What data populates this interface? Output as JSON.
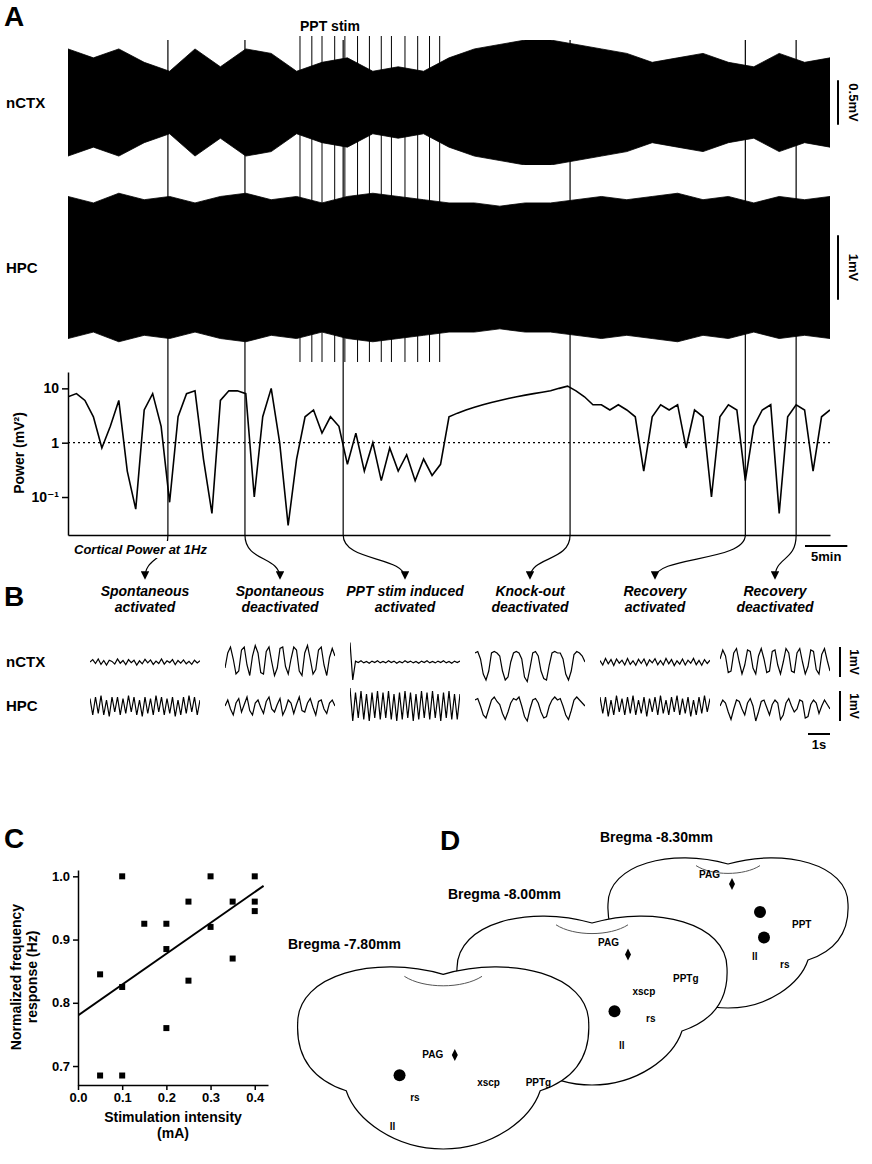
{
  "chart_data": [
    {
      "panel": "A",
      "type": "area",
      "color": "#000000",
      "x": [
        0,
        3,
        6,
        9,
        12,
        15,
        18,
        21,
        24,
        27,
        30,
        33,
        36,
        39,
        42,
        45,
        48,
        51,
        54,
        57,
        60,
        63,
        66,
        69,
        72,
        75,
        78,
        81,
        84,
        87,
        90
      ],
      "xlim": [
        0,
        90
      ],
      "series": [
        {
          "name": "nCTX",
          "ylim": [
            -0.7,
            0.7
          ],
          "scale_bar": {
            "value": 0.5,
            "label": "0.5mV"
          },
          "values": [
            0.6,
            0.5,
            0.6,
            0.45,
            0.35,
            0.6,
            0.4,
            0.6,
            0.55,
            0.35,
            0.45,
            0.5,
            0.35,
            0.4,
            0.35,
            0.5,
            0.6,
            0.65,
            0.7,
            0.7,
            0.65,
            0.6,
            0.55,
            0.45,
            0.5,
            0.55,
            0.45,
            0.4,
            0.55,
            0.45,
            0.5
          ]
        },
        {
          "name": "HPC",
          "ylim": [
            -1.2,
            1.2
          ],
          "scale_bar": {
            "value": 1,
            "label": "1mV"
          },
          "values": [
            1.1,
            1.0,
            1.15,
            1.05,
            1.1,
            1.0,
            1.1,
            1.15,
            1.05,
            1.1,
            1.0,
            1.1,
            1.15,
            1.1,
            1.05,
            1.0,
            1.0,
            0.95,
            1.0,
            1.0,
            1.05,
            1.1,
            1.05,
            1.1,
            1.15,
            1.05,
            1.1,
            1.0,
            1.1,
            1.05,
            1.1
          ]
        }
      ],
      "stim_label": "PPT stim",
      "stim_times": [
        27.4,
        28.8,
        30,
        31.5,
        32.7,
        34.2,
        35.6,
        37,
        38.2,
        39.8,
        41.3,
        42.7,
        43.9
      ]
    },
    {
      "type": "line",
      "log": "y",
      "color": "#000000",
      "tick_labels": "y",
      "x": [
        0,
        1,
        2,
        3,
        4,
        5,
        6,
        7,
        8,
        9,
        10,
        11,
        12,
        13,
        14,
        15,
        16,
        17,
        18,
        19,
        20,
        21,
        22,
        23,
        24,
        25,
        26,
        27,
        28,
        29,
        30,
        31,
        32,
        33,
        34,
        35,
        36,
        37,
        38,
        39,
        40,
        41,
        42,
        43,
        44,
        45,
        46,
        47,
        48,
        49,
        50,
        51,
        52,
        53,
        54,
        55,
        56,
        57,
        58,
        59,
        60,
        61,
        62,
        63,
        64,
        65,
        66,
        67,
        68,
        69,
        70,
        71,
        72,
        73,
        74,
        75,
        76,
        77,
        78,
        79,
        80,
        81,
        82,
        83,
        84,
        85,
        86,
        87,
        88,
        89,
        90
      ],
      "values": [
        7,
        8,
        6,
        3,
        0.8,
        2,
        6,
        0.3,
        0.06,
        4,
        8,
        2,
        0.08,
        3,
        8,
        9,
        0.5,
        0.05,
        6,
        9,
        9,
        8,
        0.1,
        3,
        10,
        1,
        0.03,
        0.5,
        3,
        4,
        1.5,
        3,
        2,
        0.4,
        1.5,
        0.3,
        1,
        0.2,
        0.8,
        0.3,
        0.6,
        0.2,
        0.5,
        0.25,
        0.4,
        3,
        3.5,
        4,
        4.5,
        5,
        5.5,
        6,
        6.5,
        7,
        7.5,
        8,
        8.5,
        9,
        10,
        11,
        9,
        7,
        5,
        5,
        4,
        5,
        4,
        3,
        0.3,
        3,
        5,
        4,
        5,
        0.8,
        4,
        3,
        0.1,
        3,
        5,
        4,
        0.2,
        2,
        4,
        5,
        0.05,
        3,
        5,
        4,
        0.3,
        3,
        4
      ],
      "xlim": [
        0,
        90
      ],
      "xticks": [],
      "ylim": [
        0.02,
        20
      ],
      "yticks": [
        10,
        1,
        {
          "value": 0.1,
          "label": "10⁻¹"
        }
      ],
      "y_label": "Power (mV²)",
      "annotation": "Cortical Power at 1Hz",
      "reference_line": 1,
      "scale_bar": {
        "value": 5,
        "label": "5min"
      },
      "events": [
        11.8,
        20.9,
        32.5,
        59.3,
        80,
        86
      ]
    },
    {
      "panel": "B",
      "type": "line",
      "color": "#000000",
      "x": [
        0,
        0.125,
        0.25,
        0.375,
        0.5,
        0.625,
        0.75,
        0.875,
        1,
        1.125,
        1.25,
        1.375,
        1.5,
        1.625,
        1.75,
        1.875,
        2,
        2.125,
        2.25,
        2.375,
        2.5,
        2.625,
        2.75,
        2.875,
        3,
        3.125,
        3.25,
        3.375,
        3.5,
        3.625,
        3.75,
        3.875,
        4,
        4.125,
        4.25,
        4.375,
        4.5,
        4.625,
        4.75,
        4.875,
        5
      ],
      "xlim": [
        0,
        5
      ],
      "ylim": [
        -0.7,
        0.7
      ],
      "rows": [
        "nCTX",
        "HPC"
      ],
      "columns": [
        {
          "label": "Spontaneous activated",
          "values": [
            [
              0,
              0.08,
              -0.05,
              0.1,
              -0.08,
              0.05,
              -0.1,
              0.06,
              0.02,
              -0.07,
              0.1,
              -0.04,
              0.05,
              -0.09,
              0.08,
              -0.02,
              0.06,
              -0.1,
              0.04,
              -0.06,
              0.09,
              -0.03,
              0.07,
              -0.08,
              0.03,
              -0.05,
              0.1,
              -0.07,
              0.04,
              -0.02,
              0.08,
              -0.09,
              0.05,
              -0.04,
              0.07,
              -0.06,
              0.02,
              -0.08,
              0.06,
              -0.03,
              0.04
            ],
            [
              0.25,
              -0.3,
              0.3,
              -0.25,
              0.35,
              -0.3,
              0.2,
              -0.35,
              0.3,
              -0.2,
              0.3,
              -0.3,
              0.25,
              -0.25,
              0.35,
              -0.2,
              0.3,
              -0.3,
              0.2,
              -0.35,
              0.3,
              -0.25,
              0.25,
              -0.3,
              0.35,
              -0.2,
              0.3,
              -0.3,
              0.25,
              -0.25,
              0.3,
              -0.35,
              0.2,
              -0.3,
              0.3,
              -0.25,
              0.35,
              -0.2,
              0.3,
              -0.3,
              0.2
            ]
          ]
        },
        {
          "label": "Spontaneous deactivated",
          "values": [
            [
              -0.2,
              0.3,
              0.5,
              0.1,
              -0.4,
              -0.3,
              0.4,
              0.5,
              -0.1,
              -0.45,
              0.2,
              0.55,
              0.3,
              -0.35,
              -0.4,
              0.35,
              0.5,
              0,
              -0.45,
              -0.2,
              0.45,
              0.5,
              -0.15,
              -0.4,
              0.1,
              0.5,
              0.4,
              -0.3,
              -0.45,
              0.3,
              0.55,
              0.1,
              -0.4,
              -0.25,
              0.4,
              0.5,
              -0.1,
              -0.45,
              0.15,
              0.45,
              0.2
            ],
            [
              0,
              0.2,
              -0.1,
              -0.3,
              0.1,
              0.25,
              -0.2,
              0.05,
              0.3,
              -0.15,
              -0.3,
              0.1,
              0.2,
              -0.05,
              -0.25,
              0.15,
              0.3,
              -0.1,
              -0.2,
              0.05,
              0.25,
              -0.3,
              -0.1,
              0.2,
              0.1,
              -0.25,
              0.05,
              0.3,
              -0.15,
              -0.2,
              0.1,
              0.25,
              -0.05,
              -0.3,
              0.15,
              0.2,
              -0.1,
              -0.25,
              0.1,
              0.2,
              0
            ]
          ]
        },
        {
          "label": "PPT stim induced activated",
          "values": [
            [
              0.65,
              -0.6,
              0.03,
              -0.02,
              0.04,
              -0.03,
              0.02,
              -0.04,
              0.03,
              -0.02,
              0.04,
              -0.03,
              0.02,
              -0.03,
              0.04,
              -0.02,
              0.03,
              -0.04,
              0.02,
              -0.03,
              0.04,
              -0.02,
              0.03,
              -0.03,
              0.02,
              -0.04,
              0.03,
              -0.02,
              0.04,
              -0.03,
              0.02,
              -0.03,
              0.03,
              -0.02,
              0.04,
              -0.03,
              0.02,
              -0.04,
              0.03,
              -0.02,
              0.03
            ],
            [
              0.6,
              -0.5,
              0.45,
              -0.4,
              0.5,
              -0.45,
              0.4,
              -0.5,
              0.45,
              -0.4,
              0.5,
              -0.45,
              0.45,
              -0.4,
              0.5,
              -0.45,
              0.4,
              -0.5,
              0.45,
              -0.45,
              0.5,
              -0.4,
              0.45,
              -0.5,
              0.4,
              -0.45,
              0.5,
              -0.4,
              0.45,
              -0.45,
              0.5,
              -0.4,
              0.4,
              -0.5,
              0.45,
              -0.4,
              0.5,
              -0.45,
              0.4,
              -0.45,
              0.4
            ]
          ]
        },
        {
          "label": "Knock-out deactivated",
          "values": [
            [
              0.3,
              0.35,
              0.1,
              -0.4,
              -0.6,
              -0.3,
              0.3,
              0.35,
              0.3,
              0.2,
              -0.3,
              -0.6,
              -0.5,
              0,
              0.3,
              0.35,
              0.3,
              0.1,
              -0.5,
              -0.65,
              -0.2,
              0.3,
              0.35,
              0.2,
              -0.3,
              -0.55,
              -0.6,
              -0.1,
              0.3,
              0.35,
              0.3,
              0.3,
              0.1,
              -0.4,
              -0.6,
              -0.3,
              0.25,
              0.35,
              0.3,
              0.2,
              0
            ],
            [
              0.2,
              0.25,
              0,
              -0.3,
              -0.4,
              -0.1,
              0.2,
              0.3,
              0.15,
              0.05,
              -0.25,
              -0.45,
              -0.2,
              0.1,
              0.25,
              0.2,
              0.3,
              0,
              -0.35,
              -0.5,
              -0.1,
              0.2,
              0.25,
              0.1,
              -0.2,
              -0.4,
              -0.35,
              0,
              0.2,
              0.3,
              0.2,
              0.25,
              0,
              -0.3,
              -0.45,
              -0.15,
              0.2,
              0.3,
              0.2,
              0.1,
              0
            ]
          ]
        },
        {
          "label": "Recovery activated",
          "values": [
            [
              0.05,
              -0.1,
              0.12,
              -0.06,
              0.08,
              -0.12,
              0.1,
              -0.04,
              0.06,
              -0.1,
              0.12,
              -0.08,
              0.04,
              -0.11,
              0.09,
              -0.05,
              0.1,
              -0.12,
              0.07,
              -0.03,
              0.11,
              -0.09,
              0.05,
              -0.1,
              0.12,
              -0.06,
              0.08,
              -0.12,
              0.04,
              -0.07,
              0.1,
              -0.1,
              0.06,
              -0.04,
              0.12,
              -0.09,
              0.05,
              -0.11,
              0.08,
              -0.05,
              0.06
            ],
            [
              0.3,
              -0.25,
              0.3,
              -0.35,
              0.2,
              -0.3,
              0.35,
              -0.2,
              0.25,
              -0.3,
              0.3,
              -0.25,
              0.35,
              -0.3,
              0.2,
              -0.25,
              0.3,
              -0.35,
              0.25,
              -0.2,
              0.3,
              -0.3,
              0.35,
              -0.25,
              0.2,
              -0.3,
              0.3,
              -0.2,
              0.35,
              -0.3,
              0.25,
              -0.25,
              0.3,
              -0.35,
              0.2,
              -0.3,
              0.3,
              -0.25,
              0.35,
              -0.2,
              0.25
            ]
          ]
        },
        {
          "label": "Recovery deactivated",
          "values": [
            [
              0.1,
              0.4,
              0.2,
              -0.35,
              -0.3,
              0.3,
              0.45,
              0,
              -0.4,
              -0.1,
              0.4,
              0.35,
              -0.2,
              -0.4,
              0.2,
              0.45,
              0.1,
              -0.35,
              -0.3,
              0.35,
              0.4,
              -0.1,
              -0.4,
              0,
              0.45,
              0.3,
              -0.3,
              -0.35,
              0.3,
              0.45,
              0,
              -0.4,
              -0.15,
              0.4,
              0.35,
              -0.25,
              -0.4,
              0.25,
              0.45,
              0.05,
              -0.3
            ],
            [
              0,
              0.2,
              0.1,
              -0.2,
              -0.45,
              -0.1,
              0.2,
              0.15,
              -0.1,
              -0.3,
              0.1,
              0.25,
              0,
              -0.5,
              -0.2,
              0.15,
              0.2,
              -0.05,
              -0.3,
              0.05,
              0.2,
              0.1,
              -0.45,
              -0.3,
              0.1,
              0.25,
              0,
              -0.2,
              -0.1,
              0.2,
              0.15,
              -0.4,
              -0.35,
              0.05,
              0.2,
              0.1,
              -0.25,
              0,
              0.2,
              0.05,
              -0.1
            ]
          ]
        }
      ],
      "scale_bars": [
        {
          "value": 1,
          "label": "1mV"
        },
        {
          "value": 1,
          "label": "1mV"
        },
        {
          "value": 1,
          "label": "1s"
        }
      ]
    },
    {
      "panel": "C",
      "type": "scatter",
      "color": "#000000",
      "marker": "square",
      "x": [
        0.05,
        0.05,
        0.1,
        0.1,
        0.1,
        0.15,
        0.2,
        0.2,
        0.2,
        0.25,
        0.25,
        0.3,
        0.3,
        0.35,
        0.35,
        0.4,
        0.4,
        0.4
      ],
      "values": [
        0.845,
        0.685,
        0.685,
        1,
        0.825,
        0.925,
        0.925,
        0.885,
        0.76,
        0.96,
        0.835,
        1,
        0.92,
        0.96,
        0.87,
        1,
        0.96,
        0.945
      ],
      "trend": {
        "x": [
          0,
          0.42
        ],
        "values": [
          0.78,
          0.985
        ]
      },
      "xlim": [
        0,
        0.43
      ],
      "xticks": [
        {
          "value": 0,
          "label": "0.0"
        },
        0.1,
        0.2,
        0.3,
        0.4
      ],
      "ylim": [
        0.67,
        1.01
      ],
      "yticks": [
        0.7,
        0.8,
        0.9,
        {
          "value": 1,
          "label": "1.0"
        }
      ],
      "x_label": "Stimulation intensity (mA)",
      "y_label": "Normalized frequency response (Hz)"
    },
    {
      "panel": "D",
      "type": "atlas",
      "sections": [
        {
          "label": "Bregma -8.30mm",
          "regions": [
            "PAG",
            "PPT",
            "ll",
            "rs"
          ],
          "sites": 2
        },
        {
          "label": "Bregma -8.00mm",
          "regions": [
            "PAG",
            "xscp",
            "PPTg",
            "rs",
            "ll"
          ],
          "sites": 1
        },
        {
          "label": "Bregma -7.80mm",
          "regions": [
            "PAG",
            "xscp",
            "PPTg",
            "rs",
            "ll"
          ],
          "sites": 1
        }
      ]
    }
  ]
}
